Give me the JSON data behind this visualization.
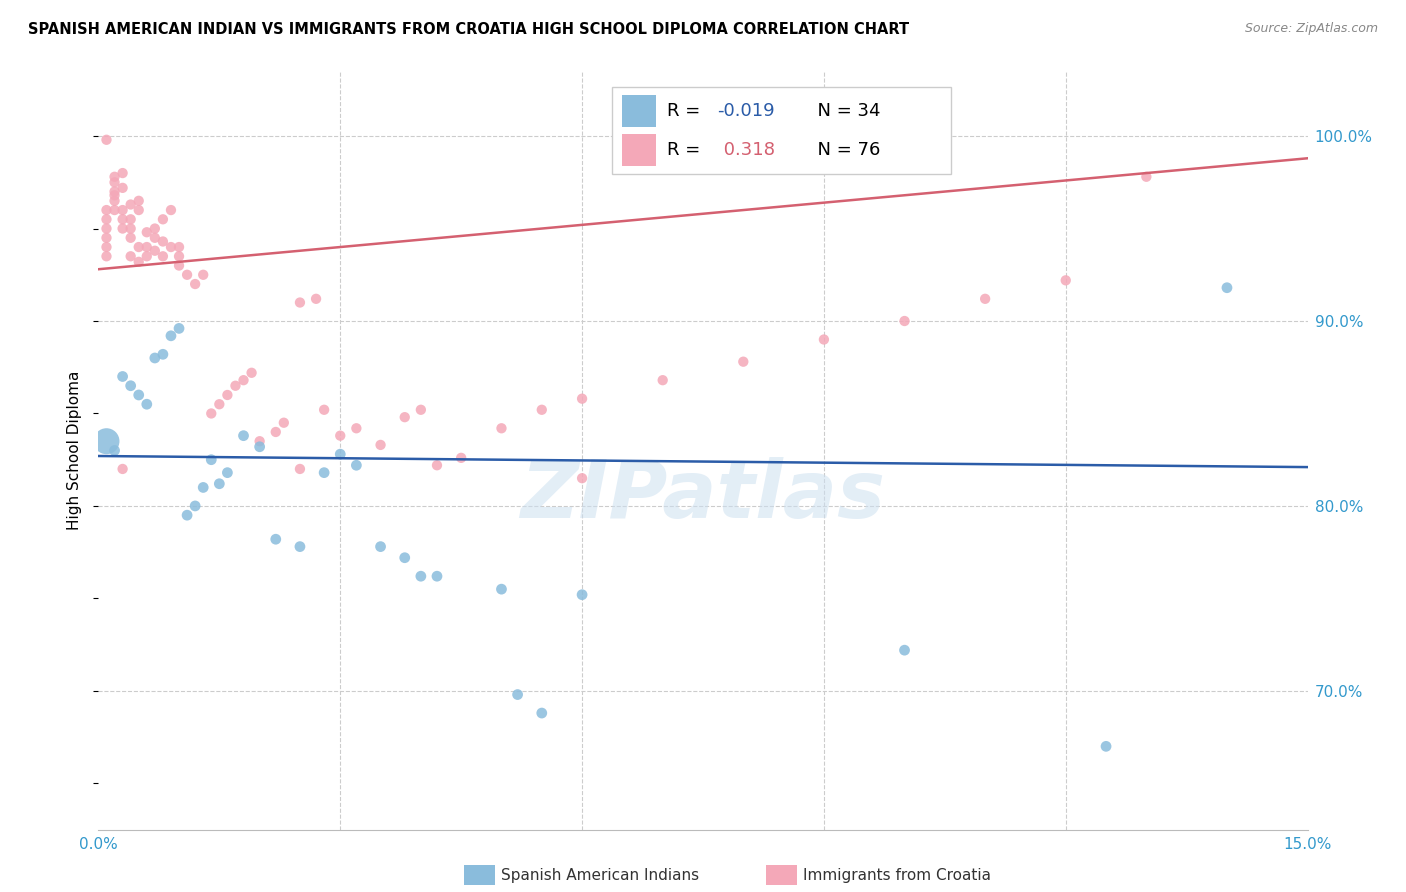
{
  "title": "SPANISH AMERICAN INDIAN VS IMMIGRANTS FROM CROATIA HIGH SCHOOL DIPLOMA CORRELATION CHART",
  "source": "Source: ZipAtlas.com",
  "ylabel": "High School Diploma",
  "y_ticks": [
    0.7,
    0.8,
    0.9,
    1.0
  ],
  "y_tick_labels": [
    "70.0%",
    "80.0%",
    "90.0%",
    "100.0%"
  ],
  "xmin": 0.0,
  "xmax": 0.15,
  "ymin": 0.625,
  "ymax": 1.035,
  "blue_R": -0.019,
  "blue_N": 34,
  "pink_R": 0.318,
  "pink_N": 76,
  "blue_color": "#8abcdc",
  "pink_color": "#f4a8b8",
  "blue_line_color": "#2b5ca8",
  "pink_line_color": "#d46070",
  "watermark": "ZIPatlas",
  "blue_scatter_x": [
    0.001,
    0.002,
    0.003,
    0.004,
    0.005,
    0.006,
    0.007,
    0.008,
    0.009,
    0.01,
    0.011,
    0.012,
    0.013,
    0.014,
    0.015,
    0.016,
    0.018,
    0.02,
    0.022,
    0.025,
    0.028,
    0.03,
    0.032,
    0.035,
    0.038,
    0.04,
    0.042,
    0.05,
    0.052,
    0.055,
    0.06,
    0.1,
    0.125,
    0.14
  ],
  "blue_scatter_y": [
    0.835,
    0.83,
    0.87,
    0.865,
    0.86,
    0.855,
    0.88,
    0.882,
    0.892,
    0.896,
    0.795,
    0.8,
    0.81,
    0.825,
    0.812,
    0.818,
    0.838,
    0.832,
    0.782,
    0.778,
    0.818,
    0.828,
    0.822,
    0.778,
    0.772,
    0.762,
    0.762,
    0.755,
    0.698,
    0.688,
    0.752,
    0.722,
    0.67,
    0.918
  ],
  "blue_scatter_size": [
    350,
    60,
    60,
    60,
    60,
    60,
    60,
    60,
    60,
    60,
    60,
    60,
    60,
    60,
    60,
    60,
    60,
    60,
    60,
    60,
    60,
    60,
    60,
    60,
    60,
    60,
    60,
    60,
    60,
    60,
    60,
    60,
    60,
    60
  ],
  "pink_scatter_x": [
    0.001,
    0.001,
    0.001,
    0.001,
    0.001,
    0.001,
    0.002,
    0.002,
    0.002,
    0.002,
    0.002,
    0.003,
    0.003,
    0.003,
    0.003,
    0.003,
    0.004,
    0.004,
    0.004,
    0.004,
    0.004,
    0.005,
    0.005,
    0.005,
    0.005,
    0.006,
    0.006,
    0.006,
    0.007,
    0.007,
    0.007,
    0.008,
    0.008,
    0.008,
    0.009,
    0.009,
    0.01,
    0.01,
    0.01,
    0.011,
    0.012,
    0.013,
    0.014,
    0.015,
    0.016,
    0.017,
    0.018,
    0.019,
    0.02,
    0.022,
    0.023,
    0.025,
    0.027,
    0.028,
    0.03,
    0.032,
    0.035,
    0.038,
    0.04,
    0.042,
    0.045,
    0.05,
    0.055,
    0.06,
    0.07,
    0.08,
    0.09,
    0.1,
    0.11,
    0.12,
    0.025,
    0.003,
    0.13,
    0.06,
    0.002,
    0.001
  ],
  "pink_scatter_y": [
    0.96,
    0.955,
    0.95,
    0.945,
    0.94,
    0.935,
    0.965,
    0.96,
    0.97,
    0.975,
    0.968,
    0.95,
    0.955,
    0.96,
    0.98,
    0.972,
    0.945,
    0.95,
    0.955,
    0.963,
    0.935,
    0.94,
    0.96,
    0.965,
    0.932,
    0.935,
    0.94,
    0.948,
    0.945,
    0.95,
    0.938,
    0.935,
    0.955,
    0.943,
    0.94,
    0.96,
    0.93,
    0.935,
    0.94,
    0.925,
    0.92,
    0.925,
    0.85,
    0.855,
    0.86,
    0.865,
    0.868,
    0.872,
    0.835,
    0.84,
    0.845,
    0.91,
    0.912,
    0.852,
    0.838,
    0.842,
    0.833,
    0.848,
    0.852,
    0.822,
    0.826,
    0.842,
    0.852,
    0.858,
    0.868,
    0.878,
    0.89,
    0.9,
    0.912,
    0.922,
    0.82,
    0.82,
    0.978,
    0.815,
    0.978,
    0.998
  ]
}
